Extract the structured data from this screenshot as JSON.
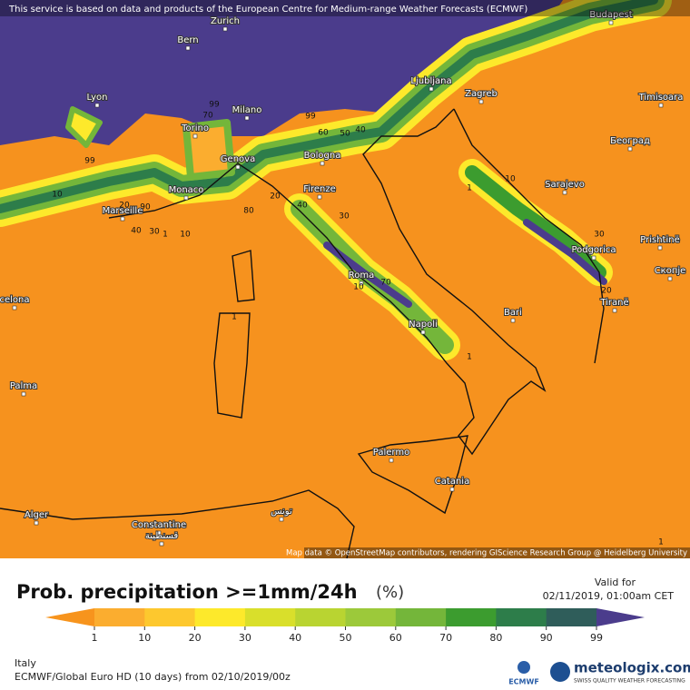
{
  "header": {
    "notice": "This service is based on data and products of the European Centre for Medium-range Weather Forecasts (ECMWF)"
  },
  "map": {
    "cities": [
      "Bern",
      "Zurich",
      "Lyon",
      "Milano",
      "Torino",
      "Genova",
      "Monaco",
      "Marseille",
      "Bologna",
      "Firenze",
      "Roma",
      "Napoli",
      "Bari",
      "Ljubljana",
      "Zagreb",
      "Budapest",
      "Timisoara",
      "Београд",
      "Sarajevo",
      "Podgorica",
      "Prishtinë",
      "Скопје",
      "Tiranë",
      "Palermo",
      "Catania",
      "Palma",
      "celona",
      "Alger",
      "Constantine",
      "قسنطينة",
      "تونس"
    ],
    "contour_labels": [
      "99",
      "70",
      "99",
      "99",
      "60",
      "50",
      "40",
      "10",
      "20",
      "90",
      "80",
      "20",
      "40",
      "30",
      "10",
      "40",
      "30",
      "1",
      "10",
      "70",
      "1",
      "10",
      "30",
      "20",
      "1",
      "1",
      "1"
    ],
    "attribution": "Map data © OpenStreetMap contributors, rendering GIScience Research Group @ Heidelberg University"
  },
  "legend": {
    "title": "Prob. precipitation >=1mm/24h",
    "unit": "(%)",
    "valid_label": "Valid for",
    "valid_time": "02/11/2019, 01:00am CET",
    "ticks": [
      1,
      10,
      20,
      30,
      40,
      50,
      60,
      70,
      80,
      90,
      99
    ],
    "colors": [
      "#f7941d",
      "#fbad2f",
      "#fdc82e",
      "#fde92b",
      "#d9df2b",
      "#b9d431",
      "#9cc93a",
      "#74b63a",
      "#3c9c2f",
      "#2d7d4a",
      "#2f5d5a",
      "#4b3c8c"
    ]
  },
  "footer": {
    "region": "Italy",
    "model": "ECMWF/Global Euro HD (10 days) from 02/10/2019/00z",
    "ecmwf": "ECMWF",
    "brand": "meteologix.com",
    "tagline": "SWISS QUALITY WEATHER FORECASTING"
  }
}
